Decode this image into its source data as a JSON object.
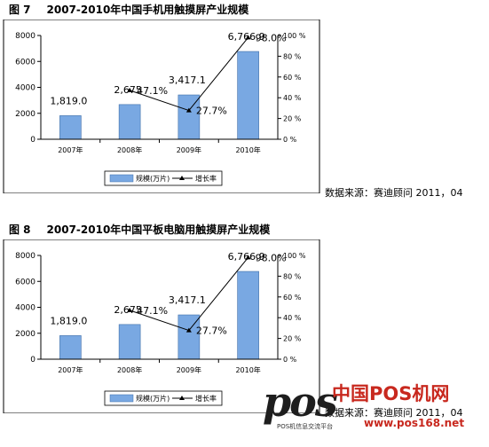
{
  "figures": [
    {
      "fig_label": "图 7",
      "title": "2007-2010年中国手机用触摸屏产业规模",
      "source": "数据来源：赛迪顾问  2011，04"
    },
    {
      "fig_label": "图 8",
      "title": "2007-2010年中国平板电脑用触摸屏产业规模",
      "source": "数据来源：赛迪顾问  2011，04"
    }
  ],
  "watermark": {
    "logo": "pos",
    "site_cn": "中国POS机网",
    "url": "www.pos168.net",
    "sub": "POS机信息交流平台"
  },
  "colors": {
    "bar": "#79a8e2",
    "bar_stroke": "#3f6ea8",
    "line": "#000000"
  },
  "chart_data": [
    {
      "type": "bar",
      "categories": [
        "2007年",
        "2008年",
        "2009年",
        "2010年"
      ],
      "series": [
        {
          "name": "规模(万片)",
          "type": "bar",
          "axis": "left",
          "values": [
            1819.0,
            2675.0,
            3417.1,
            6766.9
          ]
        },
        {
          "name": "增长率",
          "type": "line",
          "axis": "right",
          "values": [
            null,
            47.1,
            27.7,
            98.0
          ]
        }
      ],
      "bar_labels": [
        "1,819.0",
        "2,675",
        "3,417.1",
        "6,766.9"
      ],
      "line_labels": [
        "",
        "47.1%",
        "27.7%",
        "98.0%"
      ],
      "ylim": [
        0,
        8000
      ],
      "yticks": [
        "0",
        "2000",
        "4000",
        "6000",
        "8000"
      ],
      "y2lim": [
        0,
        100
      ],
      "y2ticks": [
        "0 %",
        "20 %",
        "40 %",
        "60 %",
        "80 %",
        "100 %"
      ],
      "legend_position": "bottom",
      "grid": false
    },
    {
      "type": "bar",
      "categories": [
        "2007年",
        "2008年",
        "2009年",
        "2010年"
      ],
      "series": [
        {
          "name": "规模(万片)",
          "type": "bar",
          "axis": "left",
          "values": [
            1819.0,
            2675.0,
            3417.1,
            6766.9
          ]
        },
        {
          "name": "增长率",
          "type": "line",
          "axis": "right",
          "values": [
            null,
            47.1,
            27.7,
            98.0
          ]
        }
      ],
      "bar_labels": [
        "1,819.0",
        "2,675",
        "3,417.1",
        "6,766.9"
      ],
      "line_labels": [
        "",
        "47.1%",
        "27.7%",
        "98.0%"
      ],
      "ylim": [
        0,
        8000
      ],
      "yticks": [
        "0",
        "2000",
        "4000",
        "6000",
        "8000"
      ],
      "y2lim": [
        0,
        100
      ],
      "y2ticks": [
        "0 %",
        "20 %",
        "40 %",
        "60 %",
        "80 %",
        "100 %"
      ],
      "legend_position": "bottom",
      "grid": false
    }
  ]
}
